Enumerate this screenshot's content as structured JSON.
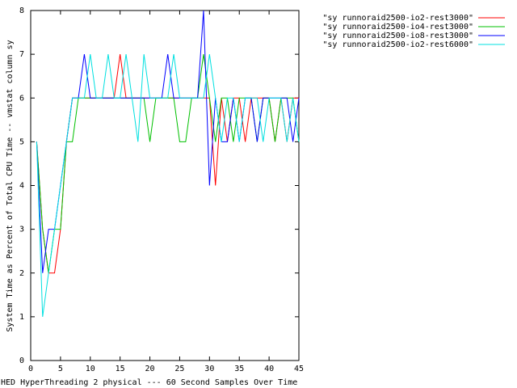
{
  "chart_data": {
    "type": "line",
    "title": "HED HyperThreading 2 physical --- 60 Second Samples Over Time",
    "y_label": "System Time as Percent of Total CPU Time -- vmstat column sy",
    "legend_position": "top-right",
    "xlim": [
      0,
      45
    ],
    "xticks": [
      0,
      5,
      10,
      15,
      20,
      25,
      30,
      35,
      40,
      45
    ],
    "ylim": [
      0,
      8
    ],
    "yticks": [
      0,
      1,
      2,
      3,
      4,
      5,
      6,
      7,
      8
    ],
    "x": [
      1,
      2,
      3,
      4,
      5,
      6,
      7,
      8,
      9,
      10,
      11,
      12,
      13,
      14,
      15,
      16,
      17,
      18,
      19,
      20,
      21,
      22,
      23,
      24,
      25,
      26,
      27,
      28,
      29,
      30,
      31,
      32,
      33,
      34,
      35,
      36,
      37,
      38,
      39,
      40,
      41,
      42,
      43,
      44,
      45
    ],
    "series": [
      {
        "name": "\"sy runnoraid2500-io2-rest3000\"",
        "color": "#ff0000",
        "values": [
          5,
          3,
          2,
          2,
          3,
          5,
          6,
          6,
          6,
          6,
          6,
          6,
          6,
          6,
          7,
          6,
          6,
          6,
          6,
          6,
          6,
          6,
          6,
          6,
          6,
          6,
          6,
          6,
          6,
          6,
          4,
          6,
          5,
          6,
          6,
          5,
          6,
          6,
          6,
          6,
          5,
          6,
          5,
          6,
          6
        ]
      },
      {
        "name": "\"sy runnoraid2500-io4-rest3000\"",
        "color": "#00c000",
        "values": [
          5,
          3,
          2,
          3,
          3,
          5,
          5,
          6,
          6,
          6,
          6,
          6,
          6,
          6,
          6,
          6,
          6,
          6,
          6,
          5,
          6,
          6,
          6,
          6,
          5,
          5,
          6,
          6,
          7,
          6,
          5,
          6,
          6,
          5,
          6,
          6,
          6,
          5,
          6,
          6,
          5,
          6,
          6,
          6,
          5
        ]
      },
      {
        "name": "\"sy runnoraid2500-io8-rest3000\"",
        "color": "#0000ff",
        "values": [
          5,
          2,
          3,
          3,
          4,
          5,
          6,
          6,
          7,
          6,
          6,
          6,
          6,
          6,
          6,
          6,
          6,
          6,
          6,
          6,
          6,
          6,
          7,
          6,
          6,
          6,
          6,
          6,
          8,
          4,
          6,
          5,
          5,
          6,
          5,
          6,
          6,
          5,
          6,
          6,
          6,
          6,
          6,
          5,
          6
        ]
      },
      {
        "name": "\"sy runnoraid2500-io2-rest6000\"",
        "color": "#00e0e0",
        "values": [
          5,
          1,
          2,
          3,
          4,
          5,
          6,
          6,
          6,
          7,
          6,
          6,
          7,
          6,
          6,
          7,
          6,
          5,
          7,
          6,
          6,
          6,
          6,
          7,
          6,
          6,
          6,
          6,
          6,
          7,
          6,
          5,
          6,
          6,
          5,
          6,
          6,
          6,
          5,
          6,
          6,
          6,
          5,
          6,
          5
        ]
      }
    ]
  }
}
